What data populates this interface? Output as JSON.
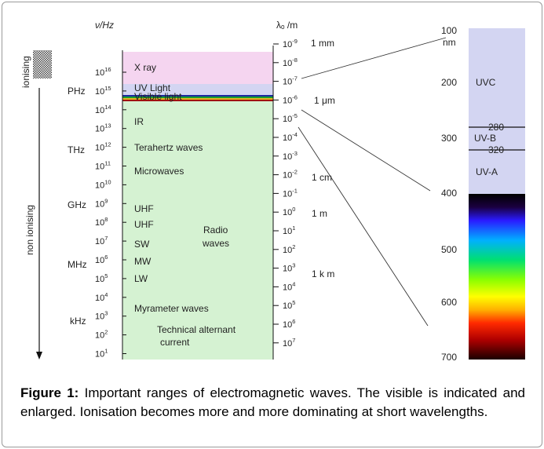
{
  "header": {
    "freq_axis_label": "ν/Hz",
    "wavelength_axis_label": "λₒ /m"
  },
  "ionisation": {
    "ionising_label": "ionising",
    "non_ionising_label": "non ionising"
  },
  "freq_units": [
    "PHz",
    "THz",
    "GHz",
    "MHz",
    "kHz"
  ],
  "freq_ticks": [
    {
      "base": "10",
      "exp": "16"
    },
    {
      "base": "10",
      "exp": "15"
    },
    {
      "base": "10",
      "exp": "14"
    },
    {
      "base": "10",
      "exp": "13"
    },
    {
      "base": "10",
      "exp": "12"
    },
    {
      "base": "10",
      "exp": "11"
    },
    {
      "base": "10",
      "exp": "10"
    },
    {
      "base": "10",
      "exp": "9"
    },
    {
      "base": "10",
      "exp": "8"
    },
    {
      "base": "10",
      "exp": "7"
    },
    {
      "base": "10",
      "exp": "6"
    },
    {
      "base": "10",
      "exp": "5"
    },
    {
      "base": "10",
      "exp": "4"
    },
    {
      "base": "10",
      "exp": "3"
    },
    {
      "base": "10",
      "exp": "2"
    },
    {
      "base": "10",
      "exp": "1"
    }
  ],
  "wave_ticks": [
    {
      "base": "10",
      "exp": "-9"
    },
    {
      "base": "10",
      "exp": "-8"
    },
    {
      "base": "10",
      "exp": "-7"
    },
    {
      "base": "10",
      "exp": "-6"
    },
    {
      "base": "10",
      "exp": "-5"
    },
    {
      "base": "10",
      "exp": "-4"
    },
    {
      "base": "10",
      "exp": "-3"
    },
    {
      "base": "10",
      "exp": "-2"
    },
    {
      "base": "10",
      "exp": "-1"
    },
    {
      "base": "10",
      "exp": "0"
    },
    {
      "base": "10",
      "exp": "1"
    },
    {
      "base": "10",
      "exp": "2"
    },
    {
      "base": "10",
      "exp": "3"
    },
    {
      "base": "10",
      "exp": "4"
    },
    {
      "base": "10",
      "exp": "5"
    },
    {
      "base": "10",
      "exp": "6"
    },
    {
      "base": "10",
      "exp": "7"
    }
  ],
  "wave_units": [
    "1 mm",
    "1 μm",
    "1 cm",
    "1 m",
    "1 k m"
  ],
  "bands": {
    "xray": "X ray",
    "uv_light": "UV Light",
    "visible_light": "Visible light",
    "ir": "IR",
    "terahertz": "Terahertz waves",
    "microwaves": "Microwaves",
    "uhf1": "UHF",
    "uhf2": "UHF",
    "sw": "SW",
    "mw": "MW",
    "lw": "LW",
    "radio_line1": "Radio",
    "radio_line2": "waves",
    "myrameter": "Myrameter waves",
    "technical_line1": "Technical alternant",
    "technical_line2": "current"
  },
  "zoom_scale": {
    "labels": [
      "100",
      "200",
      "300",
      "400",
      "500",
      "600",
      "700"
    ],
    "nm_unit": "nm",
    "uvc": "UVC",
    "uvb": "UV-B",
    "uva": "UV-A",
    "b280": "280",
    "b320": "320"
  },
  "colors": {
    "xray": "#f5d5f0",
    "uv": "#d3d5f2",
    "green_band": "#d5f2d2",
    "zoom_uv": "#d3d5f2"
  },
  "caption": {
    "figure_label": "Figure 1:",
    "text": " Important ranges of electromagnetic waves. The visible is indicated and enlarged. Ionisation becomes more and more dominating at short wavelengths."
  }
}
